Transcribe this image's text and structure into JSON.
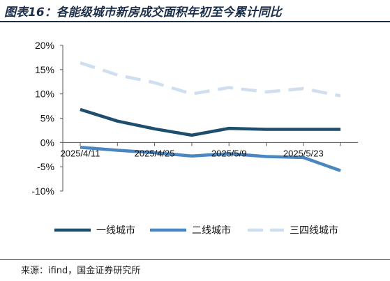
{
  "title": "图表16：各能级城市新房成交面积年初至今累计同比",
  "source": "来源：ifind，国金证券研究所",
  "chart_data": {
    "type": "line",
    "title": "图表16：各能级城市新房成交面积年初至今累计同比",
    "xlabel": "",
    "ylabel": "",
    "x": [
      "2025/4/11",
      "2025/4/18",
      "2025/4/25",
      "2025/5/2",
      "2025/5/9",
      "2025/5/16",
      "2025/5/23",
      "2025/5/30"
    ],
    "x_tick_labels": [
      "2025/4/11",
      "2025/4/25",
      "2025/5/9",
      "2025/5/23"
    ],
    "ylim": [
      -10,
      20
    ],
    "y_ticks": [
      -10,
      -5,
      0,
      5,
      10,
      15,
      20
    ],
    "y_tick_labels": [
      "-10%",
      "-5%",
      "0%",
      "5%",
      "10%",
      "15%",
      "20%"
    ],
    "grid": false,
    "legend_position": "bottom",
    "series": [
      {
        "name": "一线城市",
        "values": [
          6.8,
          4.4,
          2.8,
          1.5,
          2.9,
          2.7,
          2.7,
          2.7
        ],
        "color": "#1d4e6e",
        "style": "solid"
      },
      {
        "name": "二线城市",
        "values": [
          -1.0,
          -1.6,
          -2.1,
          -2.8,
          -2.3,
          -2.9,
          -3.1,
          -5.8
        ],
        "color": "#4a86bf",
        "style": "solid"
      },
      {
        "name": "三四线城市",
        "values": [
          16.4,
          13.9,
          12.3,
          10.0,
          11.3,
          10.4,
          11.1,
          9.6
        ],
        "color": "#cfdfef",
        "style": "dashed"
      }
    ]
  }
}
